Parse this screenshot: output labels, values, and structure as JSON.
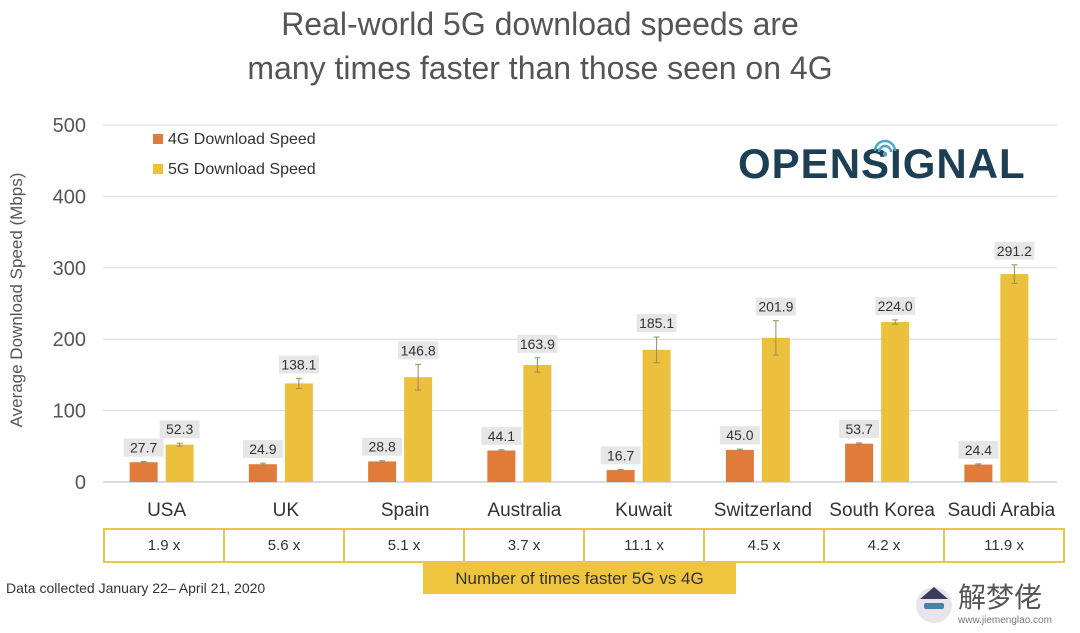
{
  "title_line1": "Real-world 5G download speeds are",
  "title_line2": "many times faster than those seen on 4G",
  "brand": "OPENSIGNAL",
  "footnote": "Data collected January 22– April 21, 2020",
  "ratio_caption": "Number of times faster 5G vs 4G",
  "ratios": [
    "1.9 x",
    "5.6 x",
    "5.1 x",
    "3.7 x",
    "11.1 x",
    "4.5 x",
    "4.2 x",
    "11.9 x"
  ],
  "watermark_text": "解梦佬",
  "watermark_url": "www.jiemenglao.com",
  "chart_data": {
    "type": "bar",
    "ylabel": "Average Download Speed (Mbps)",
    "xlabel": "",
    "ylim": [
      0,
      500
    ],
    "yticks": [
      0,
      100,
      200,
      300,
      400,
      500
    ],
    "grid": true,
    "legend_position": "top-left",
    "categories": [
      "USA",
      "UK",
      "Spain",
      "Australia",
      "Kuwait",
      "Switzerland",
      "South Korea",
      "Saudi Arabia"
    ],
    "series": [
      {
        "name": "4G Download Speed",
        "color": "#e07b39",
        "values": [
          27.7,
          24.9,
          28.8,
          44.1,
          16.7,
          45.0,
          53.7,
          24.4
        ],
        "labels": [
          "27.7",
          "24.9",
          "28.8",
          "44.1",
          "16.7",
          "45.0",
          "53.7",
          "24.4"
        ],
        "error": [
          1,
          1.5,
          1,
          1,
          1,
          1,
          1,
          1
        ]
      },
      {
        "name": "5G Download Speed",
        "color": "#ecbf3c",
        "values": [
          52.3,
          138.1,
          146.8,
          163.9,
          185.1,
          201.9,
          224.0,
          291.2
        ],
        "labels": [
          "52.3",
          "138.1",
          "146.8",
          "163.9",
          "185.1",
          "201.9",
          "224.0",
          "291.2"
        ],
        "error": [
          2,
          7,
          18,
          10,
          18,
          24,
          3,
          13
        ]
      }
    ]
  }
}
